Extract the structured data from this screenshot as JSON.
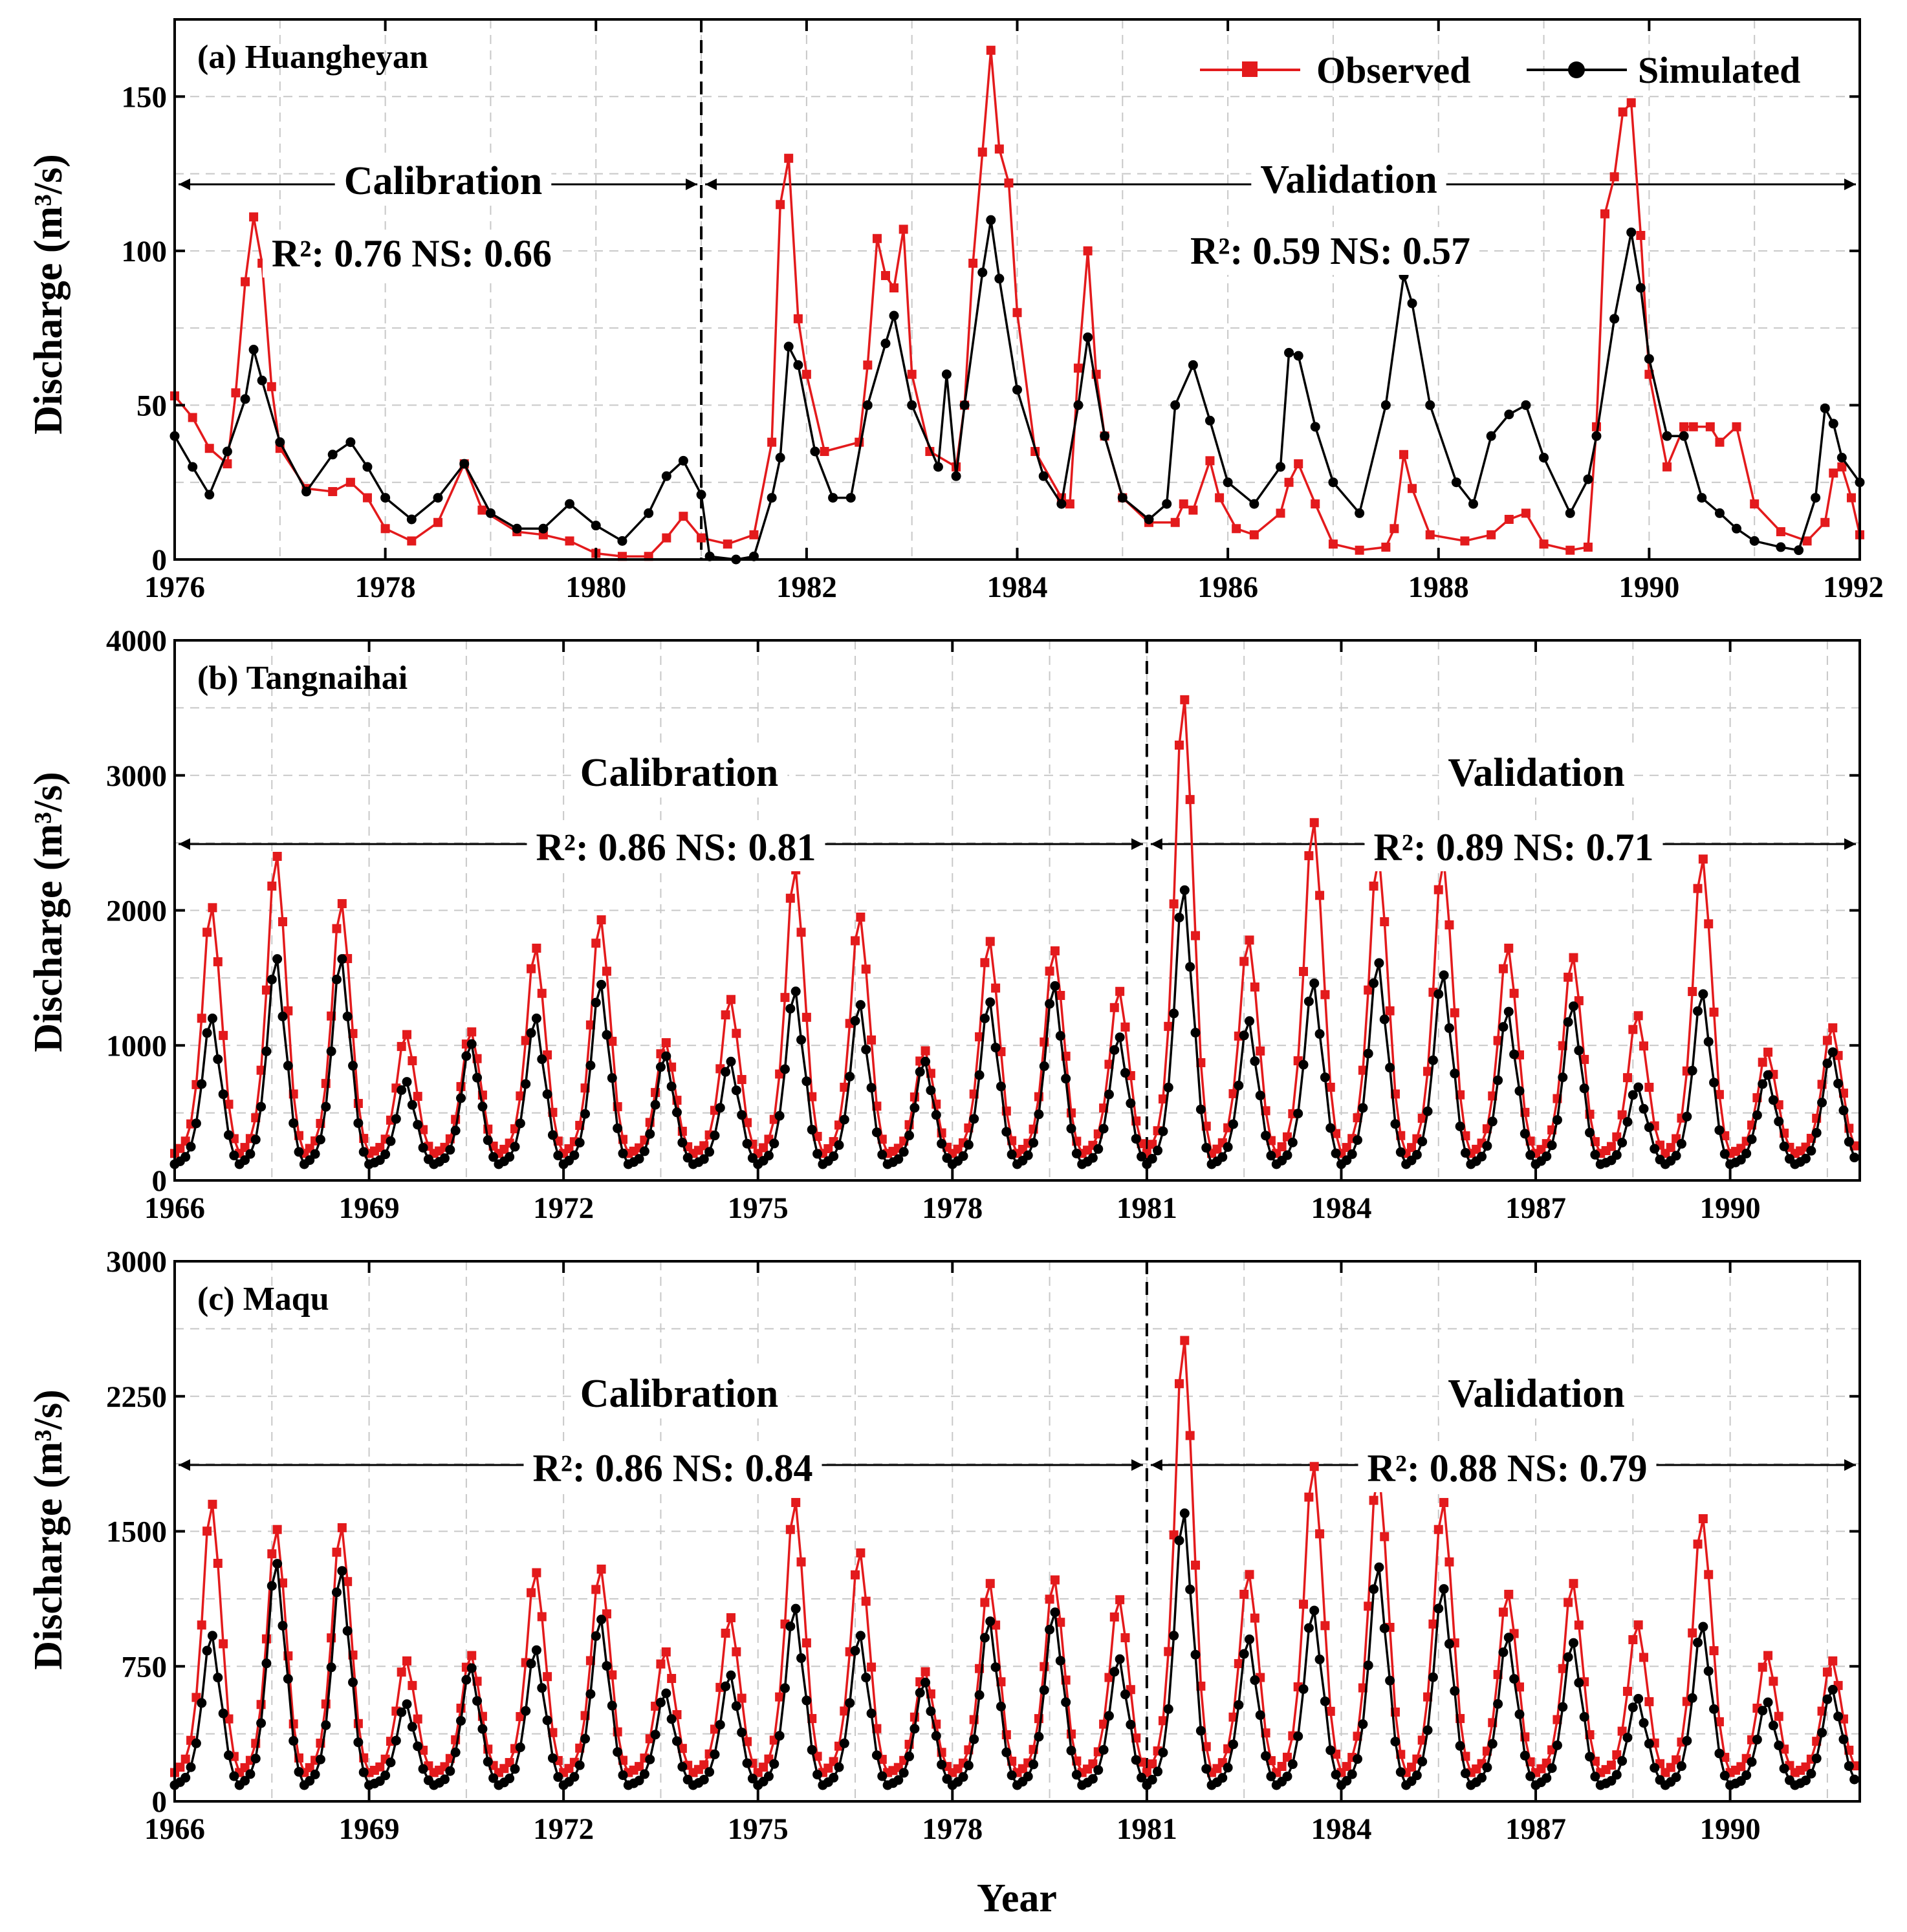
{
  "colors": {
    "observed": "#e31a1c",
    "simulated": "#000000"
  },
  "legend": {
    "observed": "Observed",
    "simulated": "Simulated"
  },
  "shared": {
    "xlabel": "Year",
    "ylabel": "Discharge (m³/s)"
  },
  "chart_data": [
    {
      "type": "line",
      "title": "(a) Huangheyan",
      "xlim": [
        1976,
        1992
      ],
      "ylim": [
        0,
        175
      ],
      "yticks": [
        0,
        50,
        100,
        150
      ],
      "xticks": [
        1976,
        1978,
        1980,
        1982,
        1984,
        1986,
        1988,
        1990,
        1992
      ],
      "xticklabels": [
        "1976",
        "1978",
        "1980",
        "1982",
        "1984",
        "1986",
        "1988",
        "1990",
        "1992"
      ],
      "split": 1981,
      "calibration_label": "Calibration",
      "validation_label": "Validation",
      "calibration_stats": "R²: 0.76  NS: 0.66",
      "validation_stats": "R²: 0.59  NS: 0.57",
      "series": [
        {
          "name": "Observed",
          "points": [
            [
              1976.0,
              53
            ],
            [
              1976.17,
              46
            ],
            [
              1976.33,
              36
            ],
            [
              1976.5,
              31
            ],
            [
              1976.58,
              54
            ],
            [
              1976.67,
              90
            ],
            [
              1976.75,
              111
            ],
            [
              1976.83,
              96
            ],
            [
              1976.92,
              56
            ],
            [
              1977.0,
              36
            ],
            [
              1977.25,
              23
            ],
            [
              1977.5,
              22
            ],
            [
              1977.67,
              25
            ],
            [
              1977.83,
              20
            ],
            [
              1978.0,
              10
            ],
            [
              1978.25,
              6
            ],
            [
              1978.5,
              12
            ],
            [
              1978.75,
              31
            ],
            [
              1978.92,
              16
            ],
            [
              1979.25,
              9
            ],
            [
              1979.5,
              8
            ],
            [
              1979.75,
              6
            ],
            [
              1980.0,
              2
            ],
            [
              1980.25,
              1
            ],
            [
              1980.5,
              1
            ],
            [
              1980.67,
              7
            ],
            [
              1980.83,
              14
            ],
            [
              1981.0,
              7
            ],
            [
              1981.25,
              5
            ],
            [
              1981.5,
              8
            ],
            [
              1981.67,
              38
            ],
            [
              1981.75,
              115
            ],
            [
              1981.83,
              130
            ],
            [
              1981.92,
              78
            ],
            [
              1982.0,
              60
            ],
            [
              1982.17,
              35
            ],
            [
              1982.5,
              38
            ],
            [
              1982.58,
              63
            ],
            [
              1982.67,
              104
            ],
            [
              1982.75,
              92
            ],
            [
              1982.83,
              88
            ],
            [
              1982.92,
              107
            ],
            [
              1983.0,
              60
            ],
            [
              1983.17,
              35
            ],
            [
              1983.42,
              30
            ],
            [
              1983.5,
              50
            ],
            [
              1983.58,
              96
            ],
            [
              1983.67,
              132
            ],
            [
              1983.75,
              165
            ],
            [
              1983.83,
              133
            ],
            [
              1983.92,
              122
            ],
            [
              1984.0,
              80
            ],
            [
              1984.17,
              35
            ],
            [
              1984.42,
              20
            ],
            [
              1984.5,
              18
            ],
            [
              1984.58,
              62
            ],
            [
              1984.67,
              100
            ],
            [
              1984.75,
              60
            ],
            [
              1984.83,
              40
            ],
            [
              1985.0,
              20
            ],
            [
              1985.25,
              12
            ],
            [
              1985.5,
              12
            ],
            [
              1985.58,
              18
            ],
            [
              1985.67,
              16
            ],
            [
              1985.83,
              32
            ],
            [
              1985.92,
              20
            ],
            [
              1986.08,
              10
            ],
            [
              1986.25,
              8
            ],
            [
              1986.5,
              15
            ],
            [
              1986.58,
              25
            ],
            [
              1986.67,
              31
            ],
            [
              1986.83,
              18
            ],
            [
              1987.0,
              5
            ],
            [
              1987.25,
              3
            ],
            [
              1987.5,
              4
            ],
            [
              1987.58,
              10
            ],
            [
              1987.67,
              34
            ],
            [
              1987.75,
              23
            ],
            [
              1987.92,
              8
            ],
            [
              1988.25,
              6
            ],
            [
              1988.5,
              8
            ],
            [
              1988.67,
              13
            ],
            [
              1988.83,
              15
            ],
            [
              1989.0,
              5
            ],
            [
              1989.25,
              3
            ],
            [
              1989.42,
              4
            ],
            [
              1989.5,
              43
            ],
            [
              1989.58,
              112
            ],
            [
              1989.67,
              124
            ],
            [
              1989.75,
              145
            ],
            [
              1989.83,
              148
            ],
            [
              1989.92,
              105
            ],
            [
              1990.0,
              60
            ],
            [
              1990.17,
              30
            ],
            [
              1990.33,
              43
            ],
            [
              1990.42,
              43
            ],
            [
              1990.58,
              43
            ],
            [
              1990.67,
              38
            ],
            [
              1990.83,
              43
            ],
            [
              1991.0,
              18
            ],
            [
              1991.25,
              9
            ],
            [
              1991.5,
              6
            ],
            [
              1991.67,
              12
            ],
            [
              1991.75,
              28
            ],
            [
              1991.83,
              30
            ],
            [
              1991.92,
              20
            ],
            [
              1992.0,
              8
            ]
          ]
        },
        {
          "name": "Simulated",
          "points": [
            [
              1976.0,
              40
            ],
            [
              1976.17,
              30
            ],
            [
              1976.33,
              21
            ],
            [
              1976.5,
              35
            ],
            [
              1976.67,
              52
            ],
            [
              1976.75,
              68
            ],
            [
              1976.83,
              58
            ],
            [
              1977.0,
              38
            ],
            [
              1977.25,
              22
            ],
            [
              1977.5,
              34
            ],
            [
              1977.67,
              38
            ],
            [
              1977.83,
              30
            ],
            [
              1978.0,
              20
            ],
            [
              1978.25,
              13
            ],
            [
              1978.5,
              20
            ],
            [
              1978.75,
              31
            ],
            [
              1979.0,
              15
            ],
            [
              1979.25,
              10
            ],
            [
              1979.5,
              10
            ],
            [
              1979.75,
              18
            ],
            [
              1980.0,
              11
            ],
            [
              1980.25,
              6
            ],
            [
              1980.5,
              15
            ],
            [
              1980.67,
              27
            ],
            [
              1980.83,
              32
            ],
            [
              1981.0,
              21
            ],
            [
              1981.08,
              1
            ],
            [
              1981.33,
              0
            ],
            [
              1981.5,
              1
            ],
            [
              1981.67,
              20
            ],
            [
              1981.75,
              33
            ],
            [
              1981.83,
              69
            ],
            [
              1981.92,
              63
            ],
            [
              1982.08,
              35
            ],
            [
              1982.25,
              20
            ],
            [
              1982.42,
              20
            ],
            [
              1982.58,
              50
            ],
            [
              1982.75,
              70
            ],
            [
              1982.83,
              79
            ],
            [
              1983.0,
              50
            ],
            [
              1983.25,
              30
            ],
            [
              1983.33,
              60
            ],
            [
              1983.42,
              27
            ],
            [
              1983.5,
              50
            ],
            [
              1983.67,
              93
            ],
            [
              1983.75,
              110
            ],
            [
              1983.83,
              91
            ],
            [
              1984.0,
              55
            ],
            [
              1984.25,
              27
            ],
            [
              1984.42,
              18
            ],
            [
              1984.58,
              50
            ],
            [
              1984.67,
              72
            ],
            [
              1984.83,
              40
            ],
            [
              1985.0,
              20
            ],
            [
              1985.25,
              13
            ],
            [
              1985.42,
              18
            ],
            [
              1985.5,
              50
            ],
            [
              1985.67,
              63
            ],
            [
              1985.83,
              45
            ],
            [
              1986.0,
              25
            ],
            [
              1986.25,
              18
            ],
            [
              1986.5,
              30
            ],
            [
              1986.58,
              67
            ],
            [
              1986.67,
              66
            ],
            [
              1986.83,
              43
            ],
            [
              1987.0,
              25
            ],
            [
              1987.25,
              15
            ],
            [
              1987.5,
              50
            ],
            [
              1987.67,
              92
            ],
            [
              1987.75,
              83
            ],
            [
              1987.92,
              50
            ],
            [
              1988.17,
              25
            ],
            [
              1988.33,
              18
            ],
            [
              1988.5,
              40
            ],
            [
              1988.67,
              47
            ],
            [
              1988.83,
              50
            ],
            [
              1989.0,
              33
            ],
            [
              1989.25,
              15
            ],
            [
              1989.42,
              26
            ],
            [
              1989.5,
              40
            ],
            [
              1989.67,
              78
            ],
            [
              1989.83,
              106
            ],
            [
              1989.92,
              88
            ],
            [
              1990.0,
              65
            ],
            [
              1990.17,
              40
            ],
            [
              1990.33,
              40
            ],
            [
              1990.5,
              20
            ],
            [
              1990.67,
              15
            ],
            [
              1990.83,
              10
            ],
            [
              1991.0,
              6
            ],
            [
              1991.25,
              4
            ],
            [
              1991.42,
              3
            ],
            [
              1991.58,
              20
            ],
            [
              1991.67,
              49
            ],
            [
              1991.75,
              44
            ],
            [
              1991.83,
              33
            ],
            [
              1992.0,
              25
            ]
          ]
        }
      ]
    },
    {
      "type": "line",
      "title": "(b) Tangnaihai",
      "xlim": [
        1966,
        1992
      ],
      "ylim": [
        0,
        4000
      ],
      "yticks": [
        0,
        1000,
        2000,
        3000,
        4000
      ],
      "xticks": [
        1966,
        1969,
        1972,
        1975,
        1978,
        1981,
        1984,
        1987,
        1990
      ],
      "xticklabels": [
        "1966",
        "1969",
        "1972",
        "1975",
        "1978",
        "1981",
        "1984",
        "1987",
        "1990"
      ],
      "split": 1981,
      "calibration_label": "Calibration",
      "validation_label": "Validation",
      "calibration_stats": "R²: 0.86  NS: 0.81",
      "validation_stats": "R²: 0.89  NS: 0.71",
      "years": [
        1966,
        1967,
        1968,
        1969,
        1970,
        1971,
        1972,
        1973,
        1974,
        1975,
        1976,
        1977,
        1978,
        1979,
        1980,
        1981,
        1982,
        1983,
        1984,
        1985,
        1986,
        1987,
        1988,
        1989,
        1990,
        1991
      ],
      "series": [
        {
          "name": "Observed",
          "base": 200,
          "peaks": [
            2020,
            2400,
            2050,
            1080,
            1100,
            1720,
            1930,
            1020,
            1340,
            2300,
            1950,
            960,
            1770,
            1700,
            1400,
            3560,
            1780,
            2650,
            2400,
            2370,
            1720,
            1650,
            1220,
            2380,
            950,
            1130
          ]
        },
        {
          "name": "Simulated",
          "base": 120,
          "peaks": [
            1200,
            1640,
            1640,
            730,
            1010,
            1200,
            1450,
            920,
            880,
            1400,
            1300,
            880,
            1320,
            1440,
            1060,
            2150,
            1180,
            1460,
            1610,
            1520,
            1250,
            1290,
            690,
            1380,
            780,
            950
          ]
        }
      ]
    },
    {
      "type": "line",
      "title": "(c) Maqu",
      "xlim": [
        1966,
        1992
      ],
      "ylim": [
        0,
        3000
      ],
      "yticks": [
        0,
        750,
        1500,
        2250,
        3000
      ],
      "xticks": [
        1966,
        1969,
        1972,
        1975,
        1978,
        1981,
        1984,
        1987,
        1990
      ],
      "xticklabels": [
        "1966",
        "1969",
        "1972",
        "1975",
        "1978",
        "1981",
        "1984",
        "1987",
        "1990"
      ],
      "split": 1981,
      "calibration_label": "Calibration",
      "validation_label": "Validation",
      "calibration_stats": "R²: 0.86  NS: 0.84",
      "validation_stats": "R²: 0.88  NS: 0.79",
      "years": [
        1966,
        1967,
        1968,
        1969,
        1970,
        1971,
        1972,
        1973,
        1974,
        1975,
        1976,
        1977,
        1978,
        1979,
        1980,
        1981,
        1982,
        1983,
        1984,
        1985,
        1986,
        1987,
        1988,
        1989,
        1990,
        1991
      ],
      "series": [
        {
          "name": "Observed",
          "base": 160,
          "peaks": [
            1650,
            1510,
            1520,
            780,
            810,
            1270,
            1290,
            830,
            1020,
            1660,
            1380,
            720,
            1210,
            1230,
            1120,
            2560,
            1260,
            1860,
            1840,
            1660,
            1150,
            1210,
            980,
            1570,
            810,
            780
          ]
        },
        {
          "name": "Simulated",
          "base": 90,
          "peaks": [
            920,
            1320,
            1280,
            540,
            740,
            840,
            1010,
            600,
            700,
            1070,
            920,
            660,
            1000,
            1050,
            790,
            1600,
            900,
            1060,
            1300,
            1180,
            910,
            880,
            570,
            970,
            550,
            620
          ]
        }
      ]
    }
  ]
}
